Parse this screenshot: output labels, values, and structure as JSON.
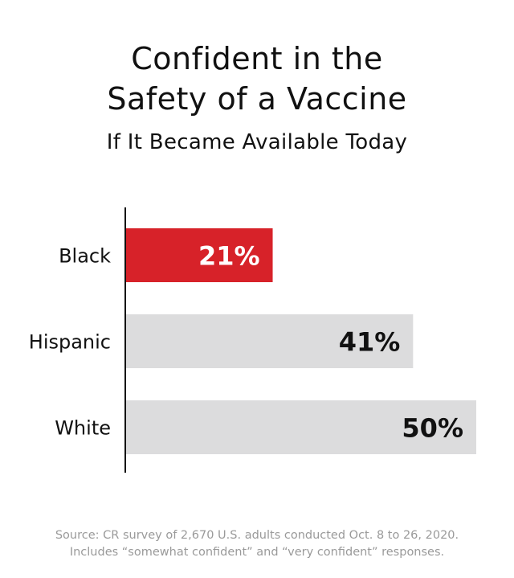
{
  "chart_data": {
    "type": "bar",
    "orientation": "horizontal",
    "title_lines": [
      "Confident in the",
      "Safety of a Vaccine"
    ],
    "subtitle": "If It Became Available Today",
    "categories": [
      "Black",
      "Hispanic",
      "White"
    ],
    "values": [
      21,
      41,
      50
    ],
    "value_labels": [
      "21%",
      "41%",
      "50%"
    ],
    "unit": "%",
    "xlim": [
      0,
      50
    ],
    "grid": false,
    "legend": "none",
    "colors": {
      "highlight": "#d72229",
      "default": "#dcdcdd",
      "highlight_text": "#ffffff",
      "default_text": "#111111",
      "axis": "#111111"
    },
    "highlight_index": 0,
    "source_lines": [
      "Source: CR survey of 2,670 U.S. adults conducted Oct. 8 to 26, 2020.",
      "Includes “somewhat confident” and “very confident” responses."
    ]
  }
}
